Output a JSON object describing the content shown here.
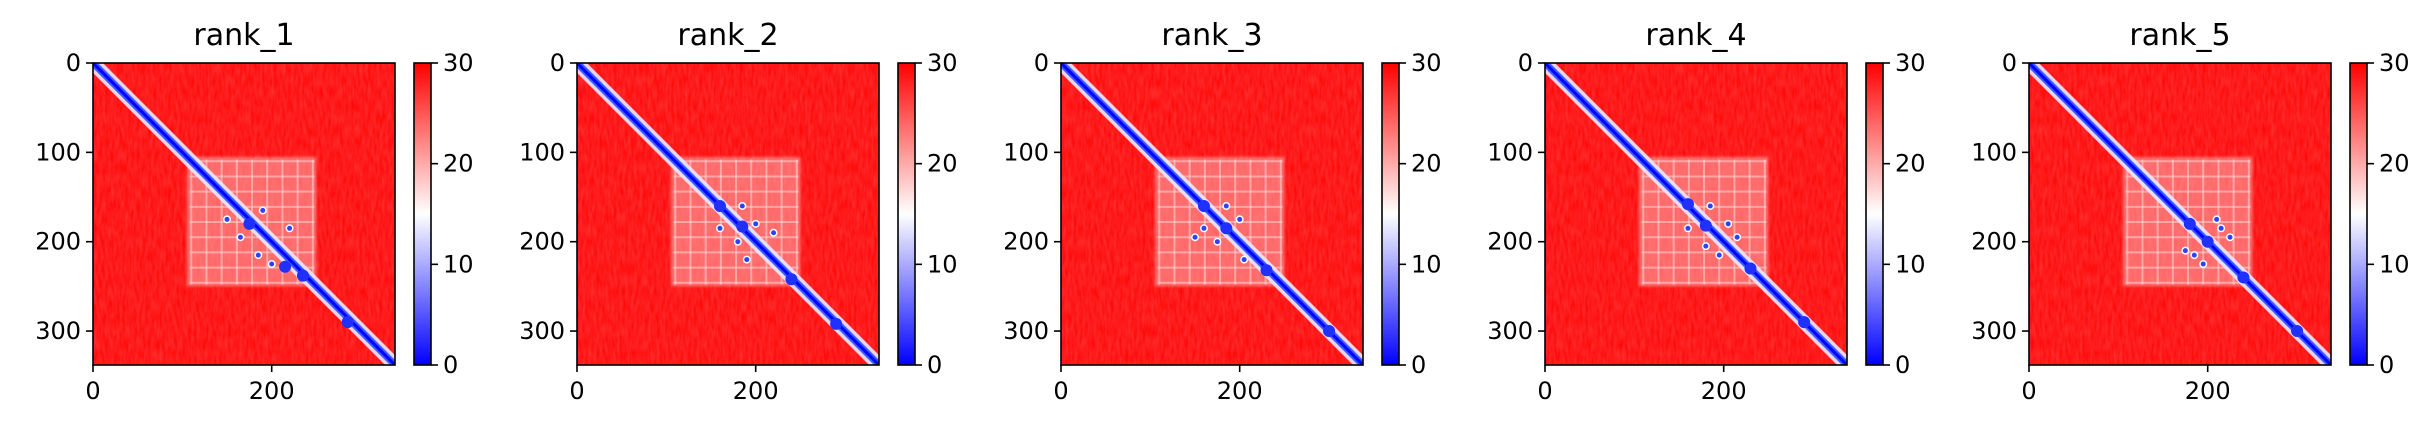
{
  "chart_data": [
    {
      "type": "heatmap",
      "title": "rank_1",
      "xlim": [
        0,
        338
      ],
      "ylim": [
        338,
        0
      ],
      "x_ticks": [
        "0",
        "200"
      ],
      "y_ticks": [
        "0",
        "100",
        "200",
        "300"
      ],
      "colorbar": {
        "min": 0,
        "max": 30,
        "ticks": [
          "0",
          "10",
          "20",
          "30"
        ],
        "colors": [
          "#0000ff",
          "#ffffff",
          "#ff0000"
        ]
      },
      "diagonal_blobs": [
        [
          175,
          180
        ],
        [
          215,
          228
        ],
        [
          235,
          238
        ],
        [
          285,
          290
        ]
      ],
      "contact_points": [
        [
          165,
          195
        ],
        [
          190,
          165
        ],
        [
          220,
          185
        ],
        [
          185,
          215
        ],
        [
          150,
          175
        ],
        [
          200,
          225
        ]
      ]
    },
    {
      "type": "heatmap",
      "title": "rank_2",
      "xlim": [
        0,
        338
      ],
      "ylim": [
        338,
        0
      ],
      "x_ticks": [
        "0",
        "200"
      ],
      "y_ticks": [
        "0",
        "100",
        "200",
        "300"
      ],
      "colorbar": {
        "min": 0,
        "max": 30,
        "ticks": [
          "0",
          "10",
          "20",
          "30"
        ],
        "colors": [
          "#0000ff",
          "#ffffff",
          "#ff0000"
        ]
      },
      "diagonal_blobs": [
        [
          160,
          160
        ],
        [
          185,
          183
        ],
        [
          240,
          242
        ],
        [
          290,
          292
        ]
      ],
      "contact_points": [
        [
          160,
          185
        ],
        [
          185,
          160
        ],
        [
          200,
          180
        ],
        [
          180,
          200
        ],
        [
          190,
          220
        ],
        [
          220,
          190
        ]
      ]
    },
    {
      "type": "heatmap",
      "title": "rank_3",
      "xlim": [
        0,
        338
      ],
      "ylim": [
        338,
        0
      ],
      "x_ticks": [
        "0",
        "200"
      ],
      "y_ticks": [
        "0",
        "100",
        "200",
        "300"
      ],
      "colorbar": {
        "min": 0,
        "max": 30,
        "ticks": [
          "0",
          "10",
          "20",
          "30"
        ],
        "colors": [
          "#0000ff",
          "#ffffff",
          "#ff0000"
        ]
      },
      "diagonal_blobs": [
        [
          160,
          160
        ],
        [
          185,
          185
        ],
        [
          230,
          232
        ],
        [
          300,
          300
        ]
      ],
      "contact_points": [
        [
          160,
          185
        ],
        [
          185,
          160
        ],
        [
          200,
          175
        ],
        [
          175,
          200
        ],
        [
          205,
          220
        ],
        [
          150,
          195
        ]
      ]
    },
    {
      "type": "heatmap",
      "title": "rank_4",
      "xlim": [
        0,
        338
      ],
      "ylim": [
        338,
        0
      ],
      "x_ticks": [
        "0",
        "200"
      ],
      "y_ticks": [
        "0",
        "100",
        "200",
        "300"
      ],
      "colorbar": {
        "min": 0,
        "max": 30,
        "ticks": [
          "0",
          "10",
          "20",
          "30"
        ],
        "colors": [
          "#0000ff",
          "#ffffff",
          "#ff0000"
        ]
      },
      "diagonal_blobs": [
        [
          160,
          158
        ],
        [
          180,
          182
        ],
        [
          230,
          230
        ],
        [
          290,
          290
        ]
      ],
      "contact_points": [
        [
          160,
          185
        ],
        [
          185,
          160
        ],
        [
          195,
          215
        ],
        [
          215,
          195
        ],
        [
          205,
          180
        ],
        [
          180,
          205
        ]
      ]
    },
    {
      "type": "heatmap",
      "title": "rank_5",
      "xlim": [
        0,
        338
      ],
      "ylim": [
        338,
        0
      ],
      "x_ticks": [
        "0",
        "200"
      ],
      "y_ticks": [
        "0",
        "100",
        "200",
        "300"
      ],
      "colorbar": {
        "min": 0,
        "max": 30,
        "ticks": [
          "0",
          "10",
          "20",
          "30"
        ],
        "colors": [
          "#0000ff",
          "#ffffff",
          "#ff0000"
        ]
      },
      "diagonal_blobs": [
        [
          180,
          180
        ],
        [
          200,
          200
        ],
        [
          240,
          240
        ],
        [
          300,
          300
        ]
      ],
      "contact_points": [
        [
          185,
          215
        ],
        [
          215,
          185
        ],
        [
          195,
          225
        ],
        [
          225,
          195
        ],
        [
          210,
          175
        ],
        [
          175,
          210
        ]
      ]
    }
  ]
}
